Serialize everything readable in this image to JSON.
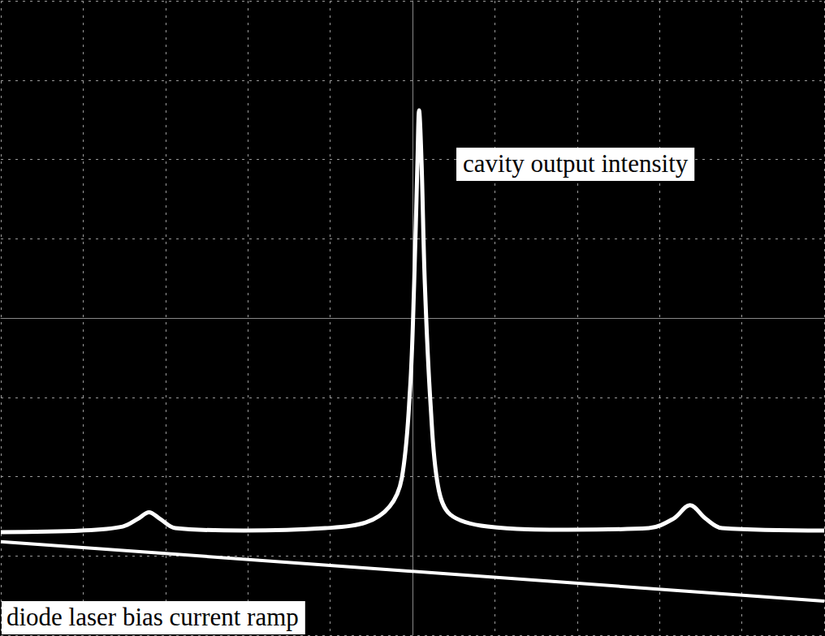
{
  "chart_data": {
    "type": "line",
    "xlim": [
      -5,
      5
    ],
    "ylim": [
      -4,
      4
    ],
    "xticks": [
      -5,
      -4,
      -3,
      -2,
      -1,
      0,
      1,
      2,
      3,
      4,
      5
    ],
    "yticks": [
      -4,
      -3,
      -2,
      -1,
      0,
      1,
      2,
      3,
      4
    ],
    "grid": true,
    "tick_labels": false,
    "series": [
      {
        "name": "cavity output intensity",
        "color": "#ffffff",
        "x": [
          -5,
          -4.02,
          -3.52,
          -3.33,
          -3.2,
          -3.07,
          -2.88,
          -2.05,
          -1.06,
          -0.57,
          -0.28,
          -0.13,
          -0.03,
          0.02,
          0.06,
          0.08,
          0.11,
          0.15,
          0.22,
          0.31,
          0.46,
          0.91,
          1.89,
          2.87,
          3.17,
          3.37,
          3.56,
          3.76,
          5
        ],
        "values": [
          -2.7,
          -2.68,
          -2.63,
          -2.53,
          -2.45,
          -2.53,
          -2.65,
          -2.68,
          -2.65,
          -2.58,
          -2.38,
          -2.02,
          -0.9,
          0.43,
          1.96,
          2.62,
          1.96,
          0.43,
          -1.1,
          -2.12,
          -2.48,
          -2.63,
          -2.67,
          -2.65,
          -2.53,
          -2.36,
          -2.53,
          -2.65,
          -2.68
        ]
      },
      {
        "name": "diode laser bias current ramp",
        "color": "#ffffff",
        "x": [
          -5,
          5
        ],
        "values": [
          -2.82,
          -3.57
        ]
      }
    ]
  }
}
